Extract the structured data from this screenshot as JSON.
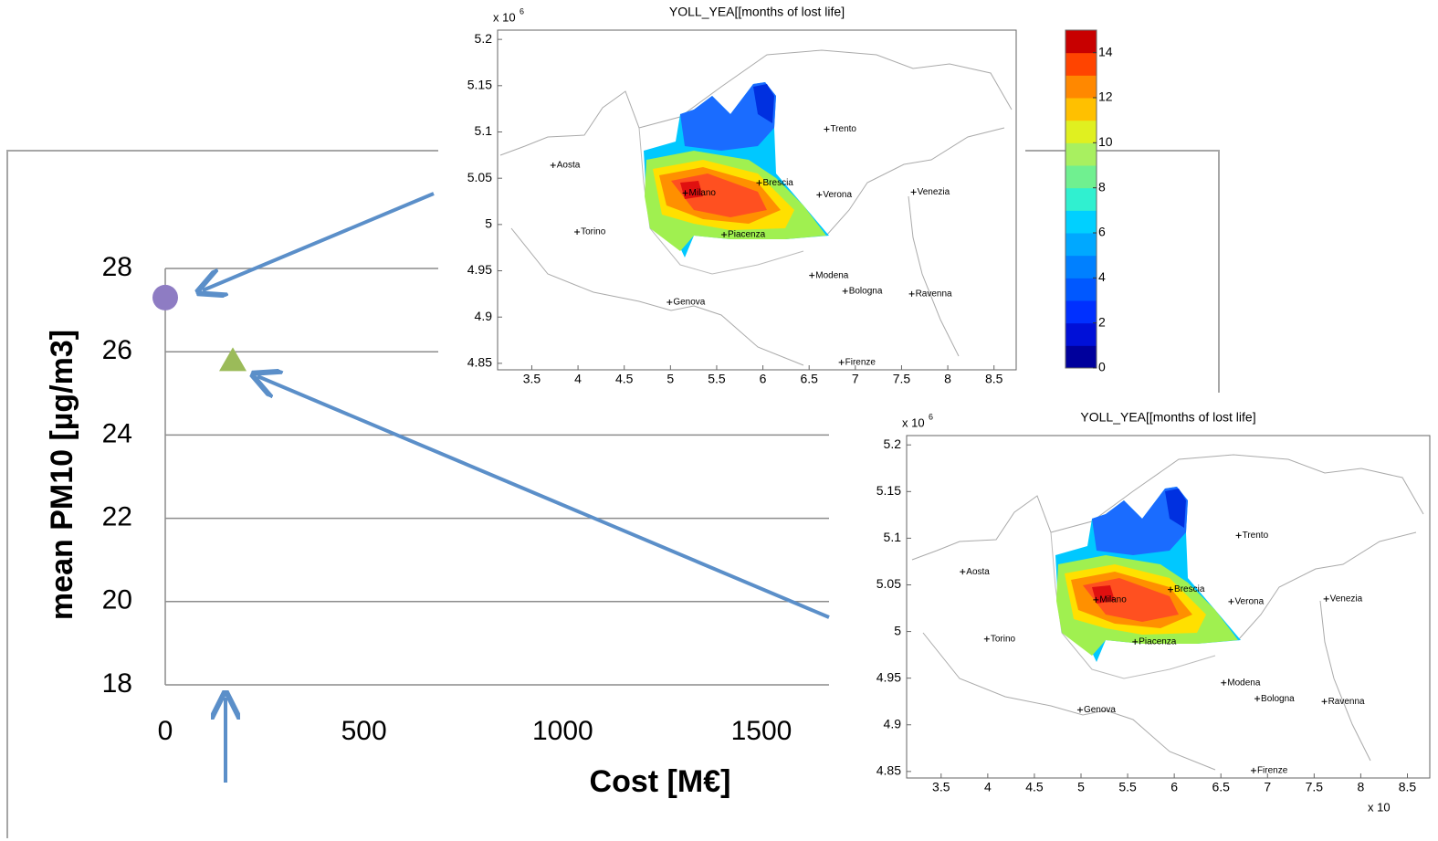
{
  "chart_data": [
    {
      "type": "scatter",
      "x_label": "Cost [M€]",
      "y_label": "mean PM10 [µg/m3]",
      "xlim": [
        0,
        1670
      ],
      "xticks": [
        0,
        500,
        1000,
        1500
      ],
      "ylim": [
        18,
        28
      ],
      "yticks": [
        18,
        20,
        22,
        24,
        26,
        28
      ],
      "grid": true,
      "series": [
        {
          "color": "#8e7cc3",
          "marker": "circle",
          "x": [
            0
          ],
          "values": [
            27.3
          ]
        },
        {
          "color": "#9bbb59",
          "marker": "triangle",
          "x": [
            170
          ],
          "values": [
            25.8
          ]
        }
      ]
    },
    {
      "type": "map",
      "title": "YOLL_YEA[[months of lost life]",
      "y_scale_label": "x 10",
      "y_scale_exponent": "6",
      "x_scale_label": "x 10",
      "xlim": [
        3.13,
        8.74
      ],
      "xticks": [
        3.5,
        4,
        4.5,
        5,
        5.5,
        6,
        6.5,
        7,
        7.5,
        8,
        8.5
      ],
      "ylim": [
        4.843,
        5.21
      ],
      "yticks": [
        4.85,
        4.9,
        4.95,
        5,
        5.05,
        5.1,
        5.15,
        5.2
      ],
      "cities": [
        {
          "name": "Aosta",
          "x": 3.73,
          "y": 5.064
        },
        {
          "name": "Torino",
          "x": 3.99,
          "y": 4.992
        },
        {
          "name": "Milano",
          "x": 5.16,
          "y": 5.034
        },
        {
          "name": "Brescia",
          "x": 5.96,
          "y": 5.045
        },
        {
          "name": "Verona",
          "x": 6.61,
          "y": 5.032
        },
        {
          "name": "Trento",
          "x": 6.69,
          "y": 5.103
        },
        {
          "name": "Venezia",
          "x": 7.63,
          "y": 5.035
        },
        {
          "name": "Piacenza",
          "x": 5.58,
          "y": 4.989
        },
        {
          "name": "Modena",
          "x": 6.53,
          "y": 4.945
        },
        {
          "name": "Bologna",
          "x": 6.89,
          "y": 4.928
        },
        {
          "name": "Ravenna",
          "x": 7.61,
          "y": 4.925
        },
        {
          "name": "Genova",
          "x": 4.99,
          "y": 4.916
        },
        {
          "name": "Firenze",
          "x": 6.85,
          "y": 4.851
        }
      ],
      "colorbar": {
        "lim": [
          0,
          15
        ],
        "ticks": [
          0,
          2,
          4,
          6,
          8,
          10,
          12,
          14
        ],
        "colors": [
          "#00009c",
          "#0010d8",
          "#0030ff",
          "#0058ff",
          "#0080ff",
          "#00a8ff",
          "#00d0ff",
          "#30f0d0",
          "#70f090",
          "#a8f060",
          "#e0f020",
          "#ffc000",
          "#ff8800",
          "#ff4400",
          "#c80000"
        ]
      }
    }
  ]
}
